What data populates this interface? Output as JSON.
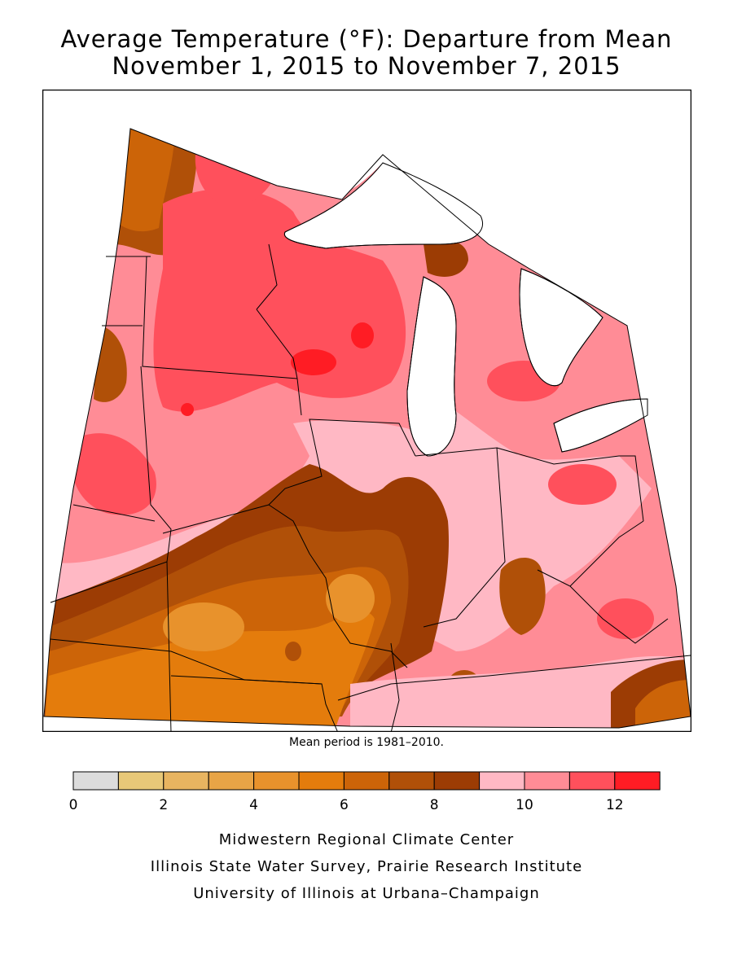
{
  "header": {
    "title_line1": "Average Temperature (°F): Departure from Mean",
    "title_line2": "November 1, 2015 to November 7, 2015"
  },
  "map": {
    "mean_period_note": "Mean period is 1981–2010.",
    "region": "Midwest United States",
    "colors": {
      "water": "#ffffff",
      "outside": "#ffffff",
      "border": "#000000"
    }
  },
  "legend": {
    "bins": [
      {
        "from": 0,
        "to": 1,
        "color": "#dcdcdc"
      },
      {
        "from": 1,
        "to": 2,
        "color": "#e8c878"
      },
      {
        "from": 2,
        "to": 3,
        "color": "#e8b460"
      },
      {
        "from": 3,
        "to": 4,
        "color": "#e8a446"
      },
      {
        "from": 4,
        "to": 5,
        "color": "#e8922c"
      },
      {
        "from": 5,
        "to": 6,
        "color": "#e47c0c"
      },
      {
        "from": 6,
        "to": 7,
        "color": "#cc6408"
      },
      {
        "from": 7,
        "to": 8,
        "color": "#b05008"
      },
      {
        "from": 8,
        "to": 9,
        "color": "#9c3c04"
      },
      {
        "from": 9,
        "to": 10,
        "color": "#ffb8c4"
      },
      {
        "from": 10,
        "to": 11,
        "color": "#ff8c96"
      },
      {
        "from": 11,
        "to": 12,
        "color": "#ff505c"
      },
      {
        "from": 12,
        "to": 13,
        "color": "#ff1c24"
      }
    ],
    "tick_labels": [
      "0",
      "2",
      "4",
      "6",
      "8",
      "10",
      "12"
    ]
  },
  "footer": {
    "line1": "Midwestern Regional Climate Center",
    "line2": "Illinois State Water Survey, Prairie Research Institute",
    "line3": "University of Illinois at Urbana–Champaign"
  }
}
